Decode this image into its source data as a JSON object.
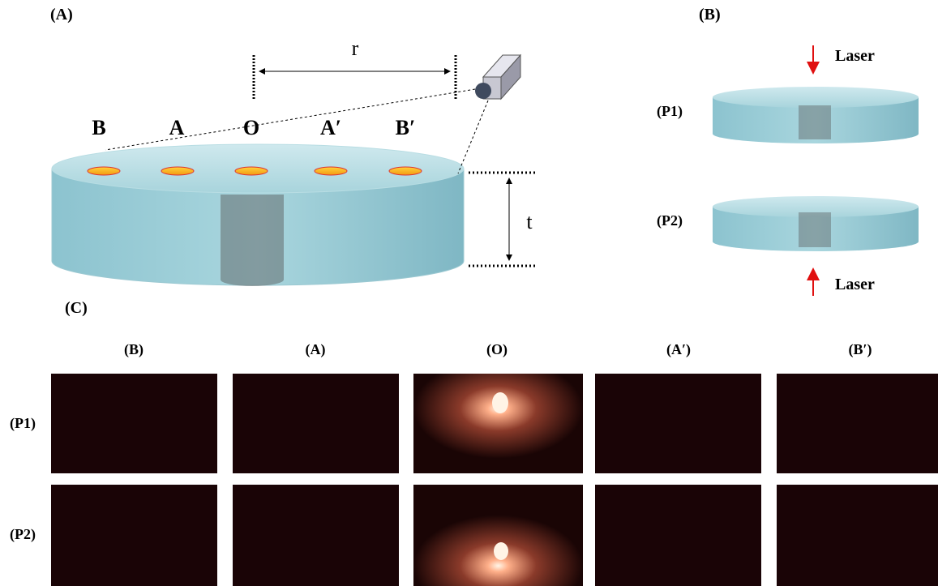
{
  "panel_a": {
    "label": "(A)",
    "positions": [
      "B",
      "A",
      "O",
      "A′",
      "B′"
    ],
    "distance_label": "r",
    "thickness_label": "t"
  },
  "panel_b": {
    "label": "(B)",
    "configs": [
      {
        "name": "(P1)",
        "laser": "Laser"
      },
      {
        "name": "(P2)",
        "laser": "Laser"
      }
    ]
  },
  "panel_c": {
    "label": "(C)",
    "columns": [
      "(B)",
      "(A)",
      "(O)",
      "(A′)",
      "(B′)"
    ],
    "rows": [
      "(P1)",
      "(P2)"
    ]
  }
}
